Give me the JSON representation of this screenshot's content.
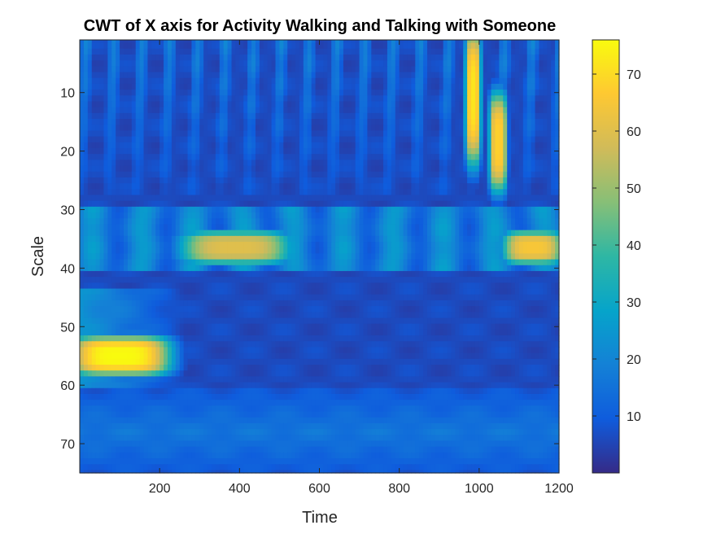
{
  "chart_data": {
    "type": "heatmap",
    "title": "CWT of X axis for Activity Walking and Talking with Someone",
    "xlabel": "Time",
    "ylabel": "Scale",
    "xlim": [
      0,
      1200
    ],
    "ylim": [
      1,
      75
    ],
    "y_reversed": true,
    "xticks": [
      200,
      400,
      600,
      800,
      1000,
      1200
    ],
    "yticks": [
      10,
      20,
      30,
      40,
      50,
      60,
      70
    ],
    "colormap": "parula",
    "colorbar": {
      "range": [
        0,
        76
      ],
      "ticks": [
        10,
        20,
        30,
        40,
        50,
        60,
        70
      ]
    },
    "features": [
      {
        "description": "high-energy band at low time",
        "time": [
          0,
          200
        ],
        "scale": [
          53,
          57
        ],
        "value": 76
      },
      {
        "description": "mid band segment",
        "time": [
          280,
          500
        ],
        "scale": [
          35,
          38
        ],
        "value": 60
      },
      {
        "description": "mid band segment",
        "time": [
          1080,
          1190
        ],
        "scale": [
          35,
          38
        ],
        "value": 65
      },
      {
        "description": "vertical streak",
        "time": [
          980,
          990
        ],
        "scale": [
          1,
          20
        ],
        "value": 72
      },
      {
        "description": "vertical streak",
        "time": [
          1040,
          1055
        ],
        "scale": [
          12,
          25
        ],
        "value": 68
      }
    ]
  }
}
